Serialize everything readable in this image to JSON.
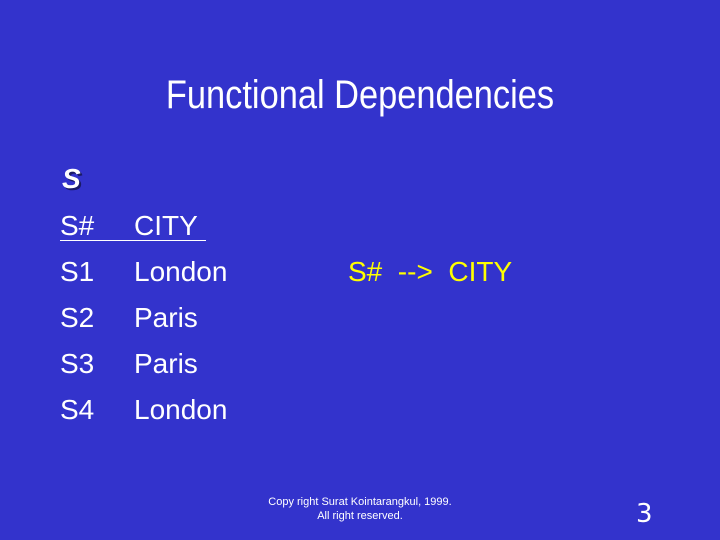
{
  "slide": {
    "title": "Functional Dependencies",
    "relation_name": "S",
    "table": {
      "headers": [
        "S#",
        "CITY"
      ],
      "rows": [
        [
          "S1",
          "London"
        ],
        [
          "S2",
          "Paris"
        ],
        [
          "S3",
          "Paris"
        ],
        [
          "S4",
          "London"
        ]
      ]
    },
    "dependency": "S#  -->  CITY",
    "footer": {
      "line1": "Copy right Surat Kointarangkul, 1999.",
      "line2": "All right reserved."
    },
    "page_number": "3"
  },
  "colors": {
    "background": "#3333cc",
    "text": "#ffffff",
    "dependency": "#ffff00"
  }
}
